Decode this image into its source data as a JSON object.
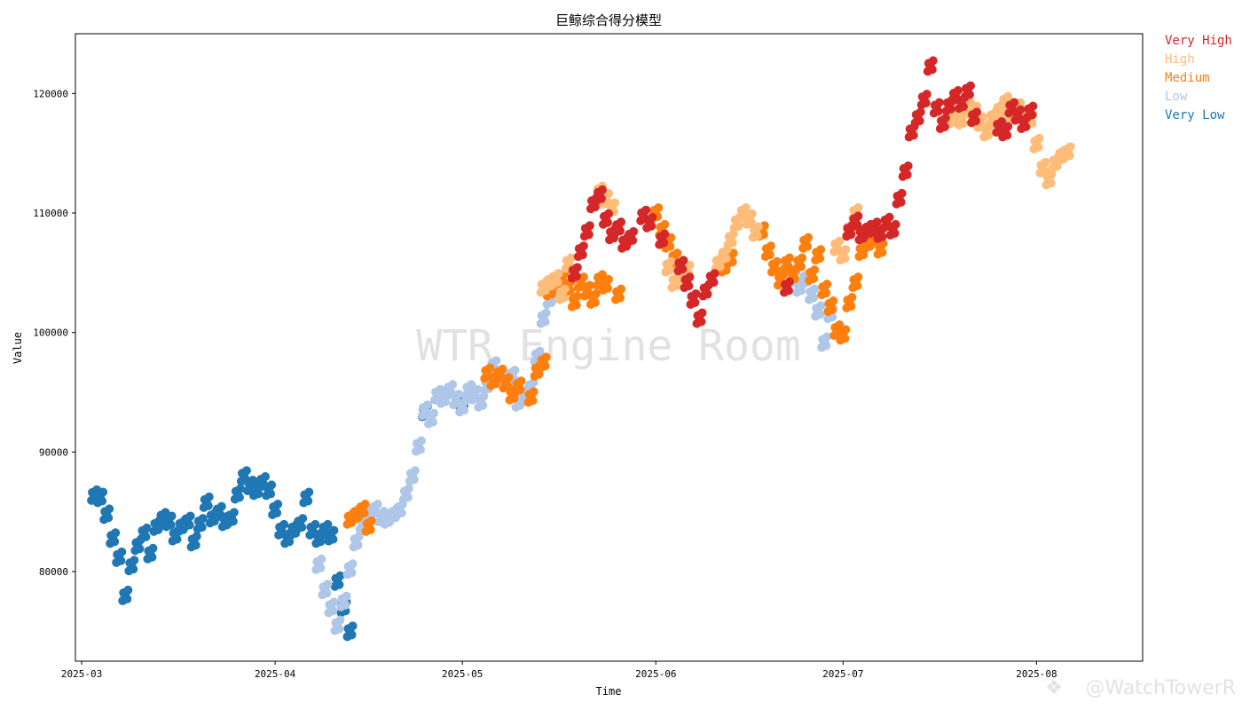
{
  "chart_data": {
    "type": "scatter",
    "title": "巨鲸综合得分模型",
    "xlabel": "Time",
    "ylabel": "Value",
    "xlim": [
      "2025-02-28",
      "2025-08-18"
    ],
    "ylim": [
      72500,
      125000
    ],
    "x_ticks": [
      "2025-03",
      "2025-04",
      "2025-05",
      "2025-06",
      "2025-07",
      "2025-08"
    ],
    "y_ticks": [
      80000,
      90000,
      100000,
      110000,
      120000
    ],
    "grid": false,
    "legend_placement": "outside-top-right",
    "watermark": "WTR Engine Room",
    "corner_mark": "@WatchTowerR",
    "series": [
      {
        "name": "Very High",
        "color": "#d62728",
        "points": [
          [
            "2025-05-19",
            105000
          ],
          [
            "2025-05-20",
            106800
          ],
          [
            "2025-05-21",
            108500
          ],
          [
            "2025-05-22",
            110800
          ],
          [
            "2025-05-23",
            111500
          ],
          [
            "2025-05-24",
            109500
          ],
          [
            "2025-05-25",
            108200
          ],
          [
            "2025-05-26",
            108800
          ],
          [
            "2025-05-27",
            107500
          ],
          [
            "2025-05-28",
            108000
          ],
          [
            "2025-05-30",
            109800
          ],
          [
            "2025-05-31",
            109200
          ],
          [
            "2025-06-02",
            107800
          ],
          [
            "2025-06-05",
            105600
          ],
          [
            "2025-06-06",
            104200
          ],
          [
            "2025-06-07",
            102800
          ],
          [
            "2025-06-08",
            101200
          ],
          [
            "2025-06-09",
            103500
          ],
          [
            "2025-06-10",
            104500
          ],
          [
            "2025-06-22",
            103800
          ],
          [
            "2025-07-02",
            108500
          ],
          [
            "2025-07-03",
            109300
          ],
          [
            "2025-07-04",
            108200
          ],
          [
            "2025-07-05",
            108600
          ],
          [
            "2025-07-06",
            108800
          ],
          [
            "2025-07-07",
            108300
          ],
          [
            "2025-07-08",
            109200
          ],
          [
            "2025-07-09",
            108600
          ],
          [
            "2025-07-10",
            111200
          ],
          [
            "2025-07-11",
            113500
          ],
          [
            "2025-07-12",
            116800
          ],
          [
            "2025-07-13",
            118000
          ],
          [
            "2025-07-14",
            119500
          ],
          [
            "2025-07-15",
            122300
          ],
          [
            "2025-07-16",
            118800
          ],
          [
            "2025-07-17",
            117500
          ],
          [
            "2025-07-18",
            119000
          ],
          [
            "2025-07-19",
            119800
          ],
          [
            "2025-07-20",
            119200
          ],
          [
            "2025-07-21",
            120200
          ],
          [
            "2025-07-22",
            118000
          ],
          [
            "2025-07-26",
            117200
          ],
          [
            "2025-07-27",
            116800
          ],
          [
            "2025-07-28",
            118800
          ],
          [
            "2025-07-29",
            118200
          ],
          [
            "2025-07-30",
            117500
          ],
          [
            "2025-07-31",
            118500
          ]
        ]
      },
      {
        "name": "High",
        "color": "#ffbb78",
        "points": [
          [
            "2025-05-14",
            103800
          ],
          [
            "2025-05-15",
            104200
          ],
          [
            "2025-05-16",
            104500
          ],
          [
            "2025-05-17",
            103200
          ],
          [
            "2025-05-18",
            105800
          ],
          [
            "2025-05-23",
            111800
          ],
          [
            "2025-05-24",
            111200
          ],
          [
            "2025-05-25",
            110400
          ],
          [
            "2025-06-03",
            105500
          ],
          [
            "2025-06-04",
            104200
          ],
          [
            "2025-06-05",
            104800
          ],
          [
            "2025-06-06",
            105200
          ],
          [
            "2025-06-11",
            105800
          ],
          [
            "2025-06-12",
            106500
          ],
          [
            "2025-06-13",
            107800
          ],
          [
            "2025-06-14",
            109200
          ],
          [
            "2025-06-15",
            110000
          ],
          [
            "2025-06-16",
            109500
          ],
          [
            "2025-06-17",
            108400
          ],
          [
            "2025-06-30",
            107200
          ],
          [
            "2025-07-01",
            106500
          ],
          [
            "2025-07-02",
            108600
          ],
          [
            "2025-07-03",
            110000
          ],
          [
            "2025-07-18",
            117800
          ],
          [
            "2025-07-19",
            118200
          ],
          [
            "2025-07-20",
            117800
          ],
          [
            "2025-07-21",
            118800
          ],
          [
            "2025-07-22",
            118500
          ],
          [
            "2025-07-23",
            117600
          ],
          [
            "2025-07-24",
            116800
          ],
          [
            "2025-07-25",
            118000
          ],
          [
            "2025-07-26",
            118600
          ],
          [
            "2025-07-27",
            119300
          ],
          [
            "2025-07-28",
            118400
          ],
          [
            "2025-07-29",
            118800
          ],
          [
            "2025-07-30",
            118200
          ],
          [
            "2025-07-31",
            117800
          ],
          [
            "2025-08-01",
            115800
          ],
          [
            "2025-08-02",
            113800
          ],
          [
            "2025-08-03",
            112800
          ],
          [
            "2025-08-04",
            114200
          ],
          [
            "2025-08-05",
            114800
          ],
          [
            "2025-08-06",
            115100
          ]
        ]
      },
      {
        "name": "Medium",
        "color": "#ff7f0e",
        "points": [
          [
            "2025-04-13",
            84400
          ],
          [
            "2025-04-14",
            84800
          ],
          [
            "2025-04-15",
            85200
          ],
          [
            "2025-04-16",
            83800
          ],
          [
            "2025-05-05",
            96600
          ],
          [
            "2025-05-06",
            96000
          ],
          [
            "2025-05-07",
            96500
          ],
          [
            "2025-05-08",
            95800
          ],
          [
            "2025-05-09",
            94800
          ],
          [
            "2025-05-10",
            95500
          ],
          [
            "2025-05-12",
            94600
          ],
          [
            "2025-05-13",
            96800
          ],
          [
            "2025-05-14",
            97500
          ],
          [
            "2025-05-15",
            103500
          ],
          [
            "2025-05-16",
            104000
          ],
          [
            "2025-05-17",
            104500
          ],
          [
            "2025-05-18",
            103800
          ],
          [
            "2025-05-19",
            102600
          ],
          [
            "2025-05-20",
            104200
          ],
          [
            "2025-05-21",
            103500
          ],
          [
            "2025-05-22",
            102800
          ],
          [
            "2025-05-23",
            104400
          ],
          [
            "2025-05-24",
            104000
          ],
          [
            "2025-05-26",
            103200
          ],
          [
            "2025-05-31",
            109200
          ],
          [
            "2025-06-01",
            110000
          ],
          [
            "2025-06-02",
            108600
          ],
          [
            "2025-06-03",
            107500
          ],
          [
            "2025-06-04",
            106200
          ],
          [
            "2025-06-05",
            105200
          ],
          [
            "2025-06-12",
            105500
          ],
          [
            "2025-06-13",
            106200
          ],
          [
            "2025-06-18",
            108500
          ],
          [
            "2025-06-19",
            106800
          ],
          [
            "2025-06-20",
            105500
          ],
          [
            "2025-06-21",
            104400
          ],
          [
            "2025-06-22",
            105800
          ],
          [
            "2025-06-23",
            104800
          ],
          [
            "2025-06-24",
            105800
          ],
          [
            "2025-06-25",
            107500
          ],
          [
            "2025-06-26",
            104800
          ],
          [
            "2025-06-27",
            106500
          ],
          [
            "2025-06-28",
            103600
          ],
          [
            "2025-06-29",
            102200
          ],
          [
            "2025-06-30",
            100200
          ],
          [
            "2025-07-01",
            99800
          ],
          [
            "2025-07-02",
            102500
          ],
          [
            "2025-07-03",
            104200
          ],
          [
            "2025-07-04",
            106800
          ],
          [
            "2025-07-05",
            107500
          ],
          [
            "2025-07-06",
            108000
          ],
          [
            "2025-07-07",
            107000
          ]
        ]
      },
      {
        "name": "Low",
        "color": "#aec7e8",
        "points": [
          [
            "2025-04-08",
            80600
          ],
          [
            "2025-04-09",
            78500
          ],
          [
            "2025-04-10",
            77000
          ],
          [
            "2025-04-11",
            75500
          ],
          [
            "2025-04-12",
            77500
          ],
          [
            "2025-04-13",
            80200
          ],
          [
            "2025-04-14",
            82500
          ],
          [
            "2025-04-15",
            84000
          ],
          [
            "2025-04-16",
            84800
          ],
          [
            "2025-04-17",
            85200
          ],
          [
            "2025-04-18",
            84600
          ],
          [
            "2025-04-19",
            84400
          ],
          [
            "2025-04-20",
            84800
          ],
          [
            "2025-04-21",
            85200
          ],
          [
            "2025-04-22",
            86500
          ],
          [
            "2025-04-23",
            88000
          ],
          [
            "2025-04-24",
            90500
          ],
          [
            "2025-04-25",
            93500
          ],
          [
            "2025-04-26",
            92800
          ],
          [
            "2025-04-27",
            94800
          ],
          [
            "2025-04-28",
            94500
          ],
          [
            "2025-04-29",
            95200
          ],
          [
            "2025-04-30",
            94400
          ],
          [
            "2025-05-01",
            93800
          ],
          [
            "2025-05-02",
            95200
          ],
          [
            "2025-05-03",
            94800
          ],
          [
            "2025-05-04",
            94200
          ],
          [
            "2025-05-05",
            95600
          ],
          [
            "2025-05-06",
            97200
          ],
          [
            "2025-05-07",
            96200
          ],
          [
            "2025-05-08",
            95800
          ],
          [
            "2025-05-09",
            96400
          ],
          [
            "2025-05-10",
            94200
          ],
          [
            "2025-05-11",
            94800
          ],
          [
            "2025-05-12",
            95400
          ],
          [
            "2025-05-13",
            98000
          ],
          [
            "2025-05-14",
            101200
          ],
          [
            "2025-05-15",
            102800
          ],
          [
            "2025-05-16",
            103600
          ],
          [
            "2025-06-23",
            104600
          ],
          [
            "2025-06-24",
            103800
          ],
          [
            "2025-06-25",
            104500
          ],
          [
            "2025-06-26",
            103200
          ],
          [
            "2025-06-27",
            101800
          ],
          [
            "2025-06-28",
            99200
          ],
          [
            "2025-06-29",
            101600
          ]
        ]
      },
      {
        "name": "Very Low",
        "color": "#1f77b4",
        "points": [
          [
            "2025-03-03",
            86400
          ],
          [
            "2025-03-04",
            86200
          ],
          [
            "2025-03-05",
            84800
          ],
          [
            "2025-03-06",
            82800
          ],
          [
            "2025-03-07",
            81200
          ],
          [
            "2025-03-08",
            78000
          ],
          [
            "2025-03-09",
            80500
          ],
          [
            "2025-03-10",
            82200
          ],
          [
            "2025-03-11",
            83200
          ],
          [
            "2025-03-12",
            81500
          ],
          [
            "2025-03-13",
            83800
          ],
          [
            "2025-03-14",
            84500
          ],
          [
            "2025-03-15",
            84200
          ],
          [
            "2025-03-16",
            83000
          ],
          [
            "2025-03-17",
            83800
          ],
          [
            "2025-03-18",
            84200
          ],
          [
            "2025-03-19",
            82500
          ],
          [
            "2025-03-20",
            84000
          ],
          [
            "2025-03-21",
            85800
          ],
          [
            "2025-03-22",
            84500
          ],
          [
            "2025-03-23",
            85000
          ],
          [
            "2025-03-24",
            84200
          ],
          [
            "2025-03-25",
            84500
          ],
          [
            "2025-03-26",
            86500
          ],
          [
            "2025-03-27",
            88000
          ],
          [
            "2025-03-28",
            87200
          ],
          [
            "2025-03-29",
            86800
          ],
          [
            "2025-03-30",
            87500
          ],
          [
            "2025-03-31",
            86800
          ],
          [
            "2025-04-01",
            85200
          ],
          [
            "2025-04-02",
            83500
          ],
          [
            "2025-04-03",
            82800
          ],
          [
            "2025-04-04",
            83500
          ],
          [
            "2025-04-05",
            84000
          ],
          [
            "2025-04-06",
            86200
          ],
          [
            "2025-04-07",
            83500
          ],
          [
            "2025-04-08",
            82800
          ],
          [
            "2025-04-09",
            83500
          ],
          [
            "2025-04-10",
            83000
          ],
          [
            "2025-04-11",
            79200
          ],
          [
            "2025-04-12",
            77000
          ],
          [
            "2025-04-13",
            75000
          ],
          [
            "2025-04-25",
            93400
          ],
          [
            "2025-05-01",
            94200
          ]
        ]
      }
    ]
  }
}
